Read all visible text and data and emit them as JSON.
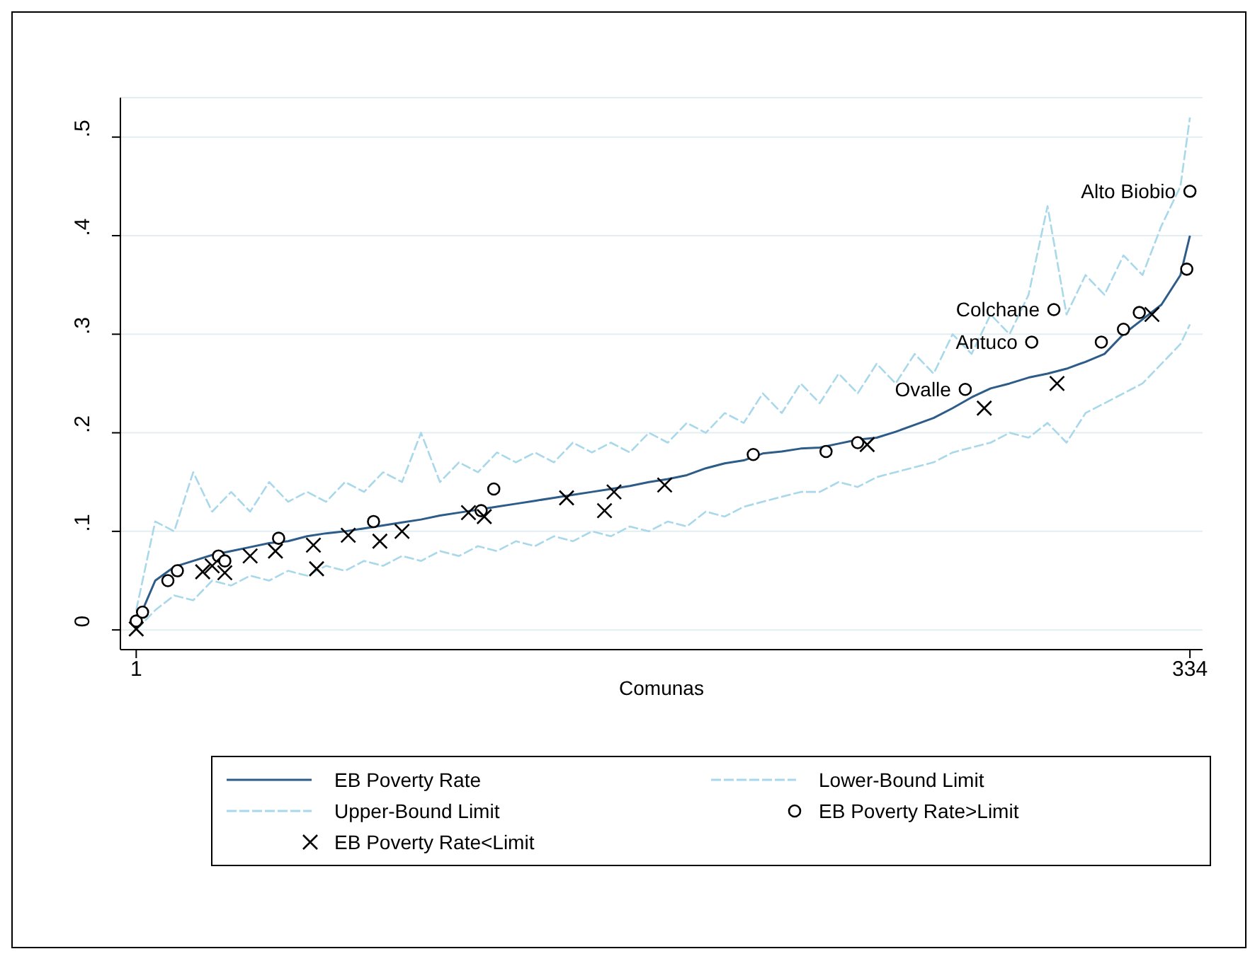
{
  "chart_data": {
    "type": "line",
    "xlabel": "Comunas",
    "x": [
      1,
      7,
      13,
      19,
      25,
      31,
      37,
      43,
      49,
      55,
      61,
      67,
      73,
      79,
      85,
      91,
      97,
      103,
      109,
      115,
      121,
      127,
      133,
      139,
      145,
      151,
      157,
      163,
      169,
      175,
      181,
      187,
      193,
      199,
      205,
      211,
      217,
      223,
      229,
      235,
      241,
      247,
      253,
      259,
      265,
      271,
      277,
      283,
      289,
      295,
      301,
      307,
      313,
      319,
      325,
      331,
      334
    ],
    "series": [
      {
        "name": "EB Poverty Rate",
        "color": "#2d5c88",
        "line_style": "solid",
        "values": [
          0.005,
          0.05,
          0.064,
          0.07,
          0.076,
          0.08,
          0.084,
          0.088,
          0.09,
          0.095,
          0.098,
          0.1,
          0.103,
          0.106,
          0.109,
          0.112,
          0.116,
          0.119,
          0.122,
          0.125,
          0.128,
          0.131,
          0.134,
          0.137,
          0.14,
          0.143,
          0.146,
          0.15,
          0.153,
          0.157,
          0.164,
          0.169,
          0.172,
          0.179,
          0.181,
          0.184,
          0.185,
          0.189,
          0.193,
          0.195,
          0.201,
          0.208,
          0.215,
          0.225,
          0.236,
          0.245,
          0.25,
          0.256,
          0.26,
          0.265,
          0.272,
          0.28,
          0.3,
          0.315,
          0.33,
          0.36,
          0.4
        ]
      },
      {
        "name": "Lower-Bound Limit",
        "color": "#a8d8ea",
        "line_style": "dashed",
        "values": [
          0,
          0.02,
          0.035,
          0.03,
          0.05,
          0.045,
          0.055,
          0.05,
          0.06,
          0.055,
          0.065,
          0.06,
          0.07,
          0.065,
          0.075,
          0.07,
          0.08,
          0.075,
          0.085,
          0.08,
          0.09,
          0.085,
          0.095,
          0.09,
          0.1,
          0.095,
          0.105,
          0.1,
          0.11,
          0.105,
          0.12,
          0.115,
          0.125,
          0.13,
          0.135,
          0.14,
          0.14,
          0.15,
          0.145,
          0.155,
          0.16,
          0.165,
          0.17,
          0.18,
          0.185,
          0.19,
          0.2,
          0.195,
          0.21,
          0.19,
          0.22,
          0.23,
          0.24,
          0.25,
          0.27,
          0.29,
          0.31
        ]
      },
      {
        "name": "Upper-Bound Limit",
        "color": "#a8d8ea",
        "line_style": "dashed",
        "values": [
          0.02,
          0.11,
          0.1,
          0.16,
          0.12,
          0.14,
          0.12,
          0.15,
          0.13,
          0.14,
          0.13,
          0.15,
          0.14,
          0.16,
          0.15,
          0.2,
          0.15,
          0.17,
          0.16,
          0.18,
          0.17,
          0.18,
          0.17,
          0.19,
          0.18,
          0.19,
          0.18,
          0.2,
          0.19,
          0.21,
          0.2,
          0.22,
          0.21,
          0.24,
          0.22,
          0.25,
          0.23,
          0.26,
          0.24,
          0.27,
          0.25,
          0.28,
          0.26,
          0.3,
          0.28,
          0.32,
          0.3,
          0.34,
          0.43,
          0.32,
          0.36,
          0.34,
          0.38,
          0.36,
          0.41,
          0.45,
          0.52
        ]
      },
      {
        "name": "EB Poverty Rate>Limit",
        "type": "scatter",
        "marker": "circle",
        "color": "#000000",
        "x": [
          1,
          3,
          11,
          14,
          27,
          29,
          46,
          76,
          110,
          114,
          196,
          219,
          229,
          263,
          284,
          291,
          306,
          313,
          318,
          333,
          334
        ],
        "values": [
          0.009,
          0.018,
          0.05,
          0.06,
          0.075,
          0.07,
          0.093,
          0.11,
          0.121,
          0.143,
          0.178,
          0.181,
          0.19,
          0.244,
          0.292,
          0.325,
          0.292,
          0.305,
          0.322,
          0.366,
          0.445
        ]
      },
      {
        "name": "EB Poverty Rate<Limit",
        "type": "scatter",
        "marker": "cross",
        "color": "#000000",
        "x": [
          1,
          22,
          25,
          29,
          37,
          45,
          57,
          58,
          68,
          78,
          85,
          106,
          111,
          137,
          149,
          152,
          168,
          232,
          269,
          292,
          322
        ],
        "values": [
          0.001,
          0.059,
          0.065,
          0.058,
          0.075,
          0.08,
          0.086,
          0.062,
          0.096,
          0.09,
          0.1,
          0.119,
          0.115,
          0.134,
          0.121,
          0.14,
          0.147,
          0.188,
          0.225,
          0.25,
          0.32
        ]
      }
    ],
    "annotations": [
      {
        "text": "Alto Biobio",
        "x": 334,
        "y": 0.445
      },
      {
        "text": "Colchane",
        "x": 291,
        "y": 0.325
      },
      {
        "text": "Antuco",
        "x": 284,
        "y": 0.292
      },
      {
        "text": "Ovalle",
        "x": 263,
        "y": 0.244
      }
    ],
    "xlim": [
      -4,
      338
    ],
    "xticks": [
      1,
      334
    ],
    "ylim": [
      -0.02,
      0.54
    ],
    "yticks": [
      0,
      {
        "value": 0.1,
        "label": ".1"
      },
      {
        "value": 0.2,
        "label": ".2"
      },
      {
        "value": 0.3,
        "label": ".3"
      },
      {
        "value": 0.4,
        "label": ".4"
      },
      {
        "value": 0.5,
        "label": ".5"
      }
    ],
    "grid": "y",
    "legend": "bottom"
  }
}
